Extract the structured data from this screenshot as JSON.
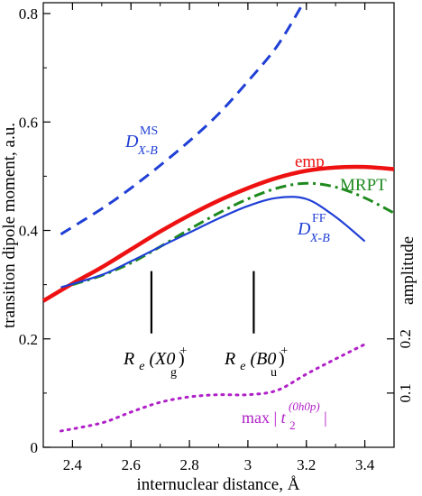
{
  "chart_data": {
    "type": "line",
    "xlabel": "internuclear distance, Å",
    "ylabel": "transition dipole moment, a.u.",
    "ylabel_right": "amplitude",
    "xlim": [
      2.3,
      3.5
    ],
    "ylim": [
      0,
      0.82
    ],
    "x_ticks": [
      "2.4",
      "2.6",
      "2.8",
      "3",
      "3.2",
      "3.4"
    ],
    "y_ticks": [
      "0",
      "0.2",
      "0.4",
      "0.6",
      "0.8"
    ],
    "y_right_ticks": [
      "0.1",
      "0.2"
    ],
    "grid": false,
    "legend": "none (inline labels)",
    "series": [
      {
        "label_main": "D",
        "label_sub": "X-B",
        "label_sup": "MS",
        "color": "#1f3fd6",
        "style": "dashed",
        "x": [
          2.36,
          2.5,
          2.6,
          2.7,
          2.8,
          2.9,
          3.0,
          3.1,
          3.19
        ],
        "y": [
          0.393,
          0.44,
          0.478,
          0.52,
          0.565,
          0.615,
          0.675,
          0.74,
          0.82
        ]
      },
      {
        "name": "emp",
        "color": "#ee1111",
        "style": "solid-thick",
        "x": [
          2.3,
          2.4,
          2.5,
          2.6,
          2.7,
          2.8,
          2.9,
          3.0,
          3.1,
          3.2,
          3.3,
          3.4,
          3.5
        ],
        "y": [
          0.27,
          0.302,
          0.332,
          0.365,
          0.398,
          0.428,
          0.455,
          0.478,
          0.497,
          0.51,
          0.516,
          0.517,
          0.513
        ]
      },
      {
        "name": "MRPT",
        "color": "#1e8a1e",
        "style": "dash-dot",
        "x": [
          2.4,
          2.5,
          2.6,
          2.7,
          2.8,
          2.9,
          3.0,
          3.1,
          3.2,
          3.3,
          3.4,
          3.5
        ],
        "y": [
          0.3,
          0.317,
          0.34,
          0.37,
          0.402,
          0.432,
          0.458,
          0.478,
          0.487,
          0.48,
          0.46,
          0.432
        ]
      },
      {
        "label_main": "D",
        "label_sub": "X-B",
        "label_sup": "FF",
        "color": "#1f3fd6",
        "style": "solid",
        "x": [
          2.36,
          2.5,
          2.6,
          2.7,
          2.8,
          2.9,
          3.0,
          3.1,
          3.2,
          3.3,
          3.4
        ],
        "y": [
          0.295,
          0.318,
          0.343,
          0.37,
          0.396,
          0.422,
          0.445,
          0.46,
          0.458,
          0.425,
          0.38
        ]
      },
      {
        "label_prefix": "max | ",
        "label_main": "t",
        "label_sub": "2",
        "label_sup": "(0h0p)",
        "label_suffix": " |",
        "color": "#b020c8",
        "style": "dotted",
        "axis": "right",
        "x": [
          2.36,
          2.5,
          2.6,
          2.7,
          2.8,
          2.9,
          3.0,
          3.1,
          3.2,
          3.3,
          3.4
        ],
        "y": [
          0.03,
          0.045,
          0.065,
          0.083,
          0.093,
          0.097,
          0.097,
          0.105,
          0.135,
          0.163,
          0.19
        ]
      }
    ],
    "markers": [
      {
        "x": 2.67,
        "y_from": 0.21,
        "y_to": 0.325,
        "label_R": "R",
        "label_e": "e",
        "label_mol": "(X0",
        "label_sup": "+",
        "label_sub": "g",
        "label_close": ")"
      },
      {
        "x": 3.02,
        "y_from": 0.21,
        "y_to": 0.325,
        "label_R": "R",
        "label_e": "e",
        "label_mol": "(B0",
        "label_sup": "+",
        "label_sub": "u",
        "label_close": ")"
      }
    ]
  }
}
